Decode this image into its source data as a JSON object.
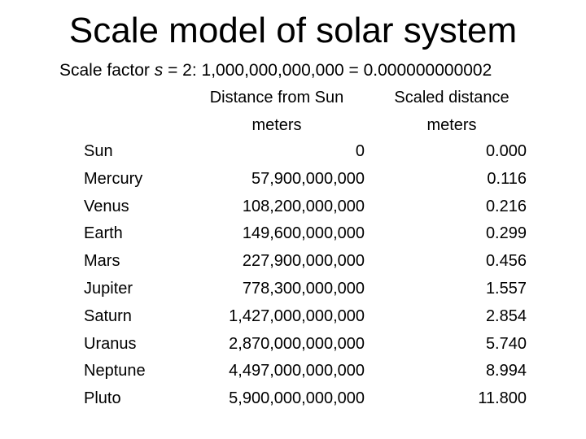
{
  "header": {
    "title": "Scale model of solar system",
    "subtitle": {
      "prefix": "Scale factor ",
      "variable": "s",
      "rest": " = 2: 1,000,000,000,000 = 0.000000000002"
    }
  },
  "table": {
    "columns": [
      "Distance from Sun",
      "Scaled distance"
    ],
    "units": [
      "meters",
      "meters"
    ],
    "rows": [
      [
        "Sun",
        "0",
        "0.000"
      ],
      [
        "Mercury",
        "57,900,000,000",
        "0.116"
      ],
      [
        "Venus",
        "108,200,000,000",
        "0.216"
      ],
      [
        "Earth",
        "149,600,000,000",
        "0.299"
      ],
      [
        "Mars",
        "227,900,000,000",
        "0.456"
      ],
      [
        "Jupiter",
        "778,300,000,000",
        "1.557"
      ],
      [
        "Saturn",
        "1,427,000,000,000",
        "2.854"
      ],
      [
        "Uranus",
        "2,870,000,000,000",
        "5.740"
      ],
      [
        "Neptune",
        "4,497,000,000,000",
        "8.994"
      ],
      [
        "Pluto",
        "5,900,000,000,000",
        "11.800"
      ]
    ]
  }
}
